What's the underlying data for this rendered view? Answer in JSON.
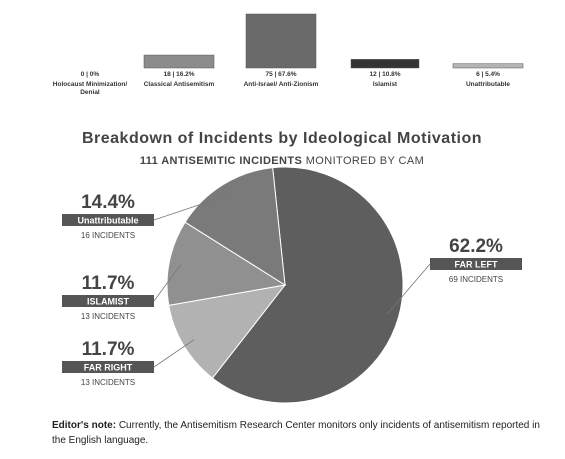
{
  "chart_data": [
    {
      "type": "bar",
      "categories": [
        "Holocaust Minimization/ Denial",
        "Classical Antisemitism",
        "Anti-Israel/ Anti-Zionism",
        "Islamist",
        "Unattributable"
      ],
      "values": [
        0,
        18,
        75,
        12,
        6
      ],
      "value_labels": [
        "0 | 0%",
        "18 | 16.2%",
        "75 | 67.6%",
        "12 | 10.8%",
        "6 | 5.4%"
      ],
      "colors": [
        "#cfcfcf",
        "#8c8c8c",
        "#6a6a6a",
        "#333333",
        "#b4b4b4"
      ]
    },
    {
      "type": "pie",
      "title": "Breakdown of Incidents by Ideological Motivation",
      "subtitle_bold": "111 ANTISEMITIC INCIDENTS",
      "subtitle": "MONITORED BY CAM",
      "categories": [
        "FAR LEFT",
        "FAR RIGHT",
        "ISLAMIST",
        "Unattributable"
      ],
      "values": [
        62.2,
        11.7,
        11.7,
        14.4
      ],
      "value_labels": [
        "62.2%",
        "11.7%",
        "11.7%",
        "14.4%"
      ],
      "details": [
        "69 INCIDENTS",
        "13 INCIDENTS",
        "13 INCIDENTS",
        "16 INCIDENTS"
      ],
      "colors": [
        "#5e5e5e",
        "#b2b2b2",
        "#909090",
        "#7a7a7a"
      ]
    }
  ],
  "note_label": "Editor's note:",
  "note": "Currently, the Antisemitism Research Center monitors only incidents of antisemitism reported in the English language."
}
